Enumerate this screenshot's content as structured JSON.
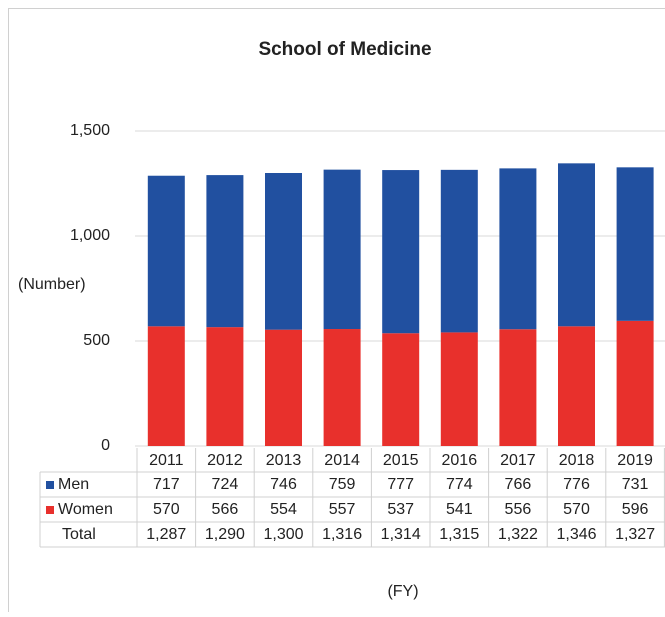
{
  "chart_data": {
    "type": "bar",
    "stacked": true,
    "title": "School of Medicine",
    "ylabel": "(Number)",
    "xlabel": "(FY)",
    "categories": [
      "2011",
      "2012",
      "2013",
      "2014",
      "2015",
      "2016",
      "2017",
      "2018",
      "2019"
    ],
    "series": [
      {
        "name": "Men",
        "color": "#2150a0",
        "values": [
          717,
          724,
          746,
          759,
          777,
          774,
          766,
          776,
          731
        ]
      },
      {
        "name": "Women",
        "color": "#e8302c",
        "values": [
          570,
          566,
          554,
          557,
          537,
          541,
          556,
          570,
          596
        ]
      }
    ],
    "totals": {
      "name": "Total",
      "values": [
        1287,
        1290,
        1300,
        1316,
        1314,
        1315,
        1322,
        1346,
        1327
      ],
      "value_labels": [
        "1,287",
        "1,290",
        "1,300",
        "1,316",
        "1,314",
        "1,315",
        "1,322",
        "1,346",
        "1,327"
      ]
    },
    "ylim": [
      0,
      1500
    ],
    "yticks": [
      0,
      500,
      {
        "value": 1000,
        "label": "1,000"
      },
      {
        "value": 1500,
        "label": "1,500"
      }
    ],
    "grid": true
  }
}
